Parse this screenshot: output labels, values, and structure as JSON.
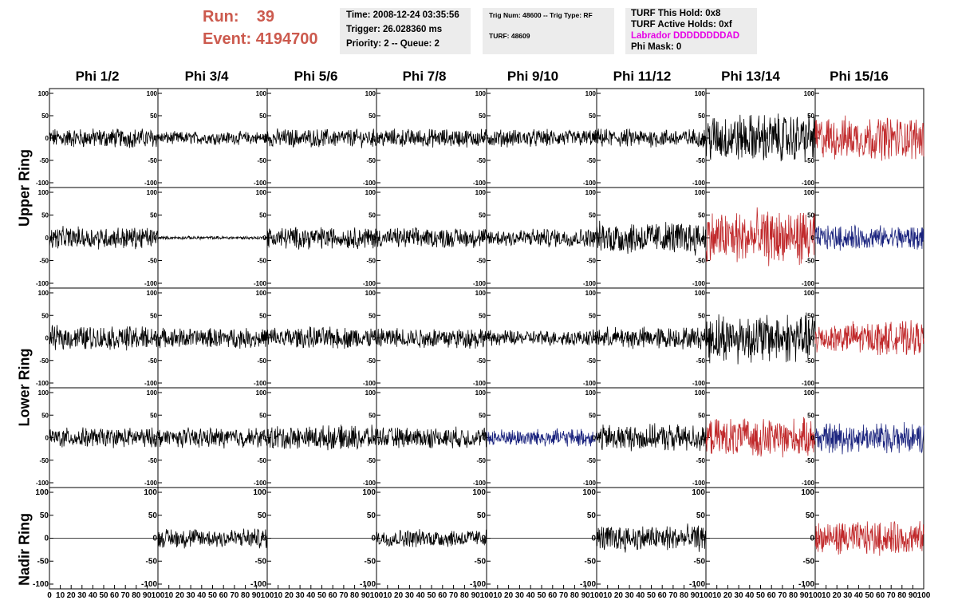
{
  "header": {
    "run_label": "Run:",
    "run_value": "39",
    "event_label": "Event:",
    "event_value": "4194700",
    "time": "Time: 2008-12-24 03:35:56",
    "trigger": "Trigger: 26.028360 ms",
    "priority": "Priority: 2 -- Queue: 2",
    "trig_num": "Trig Num: 48600 -- Trig Type: RF",
    "turf": "TURF: 48609",
    "turf_hold": "TURF This Hold: 0x8",
    "turf_active": "TURF Active Holds: 0xf",
    "labrador": "Labrador DDDDDDDDAD",
    "phi_mask": "Phi Mask: 0"
  },
  "colors": {
    "run_text": "#cc5a4e",
    "labrador_text": "#e600e6",
    "trace_black": "#000000",
    "trace_red": "#c0282a",
    "trace_blue": "#1a237e",
    "info_bg": "#ececec"
  },
  "chart_data": {
    "type": "line",
    "grid_rows": 5,
    "grid_cols": 8,
    "columns": [
      "Phi 1/2",
      "Phi 3/4",
      "Phi 5/6",
      "Phi 7/8",
      "Phi 9/10",
      "Phi 11/12",
      "Phi 13/14",
      "Phi 15/16"
    ],
    "row_groups": [
      {
        "label": "Upper Ring",
        "rows": [
          0,
          1
        ]
      },
      {
        "label": "Lower Ring",
        "rows": [
          2,
          3
        ]
      },
      {
        "label": "Nadir Ring",
        "rows": [
          4
        ]
      }
    ],
    "xlim": [
      0,
      100
    ],
    "ylim": [
      -100,
      100
    ],
    "y_ticks": [
      100,
      50,
      0,
      -50,
      -100
    ],
    "x_tick_labels": [
      "0",
      "10",
      "20",
      "30",
      "40",
      "50",
      "60",
      "70",
      "80",
      "90",
      "100"
    ],
    "panels": [
      [
        {
          "color": "black",
          "amplitude": 18
        },
        {
          "color": "black",
          "amplitude": 12
        },
        {
          "color": "black",
          "amplitude": 17
        },
        {
          "color": "black",
          "amplitude": 17
        },
        {
          "color": "black",
          "amplitude": 16
        },
        {
          "color": "black",
          "amplitude": 17
        },
        {
          "color": "black",
          "amplitude": 45
        },
        {
          "color": "red",
          "amplitude": 40
        }
      ],
      [
        {
          "color": "black",
          "amplitude": 20
        },
        {
          "color": "black",
          "amplitude": 3
        },
        {
          "color": "black",
          "amplitude": 20
        },
        {
          "color": "black",
          "amplitude": 18
        },
        {
          "color": "black",
          "amplitude": 17
        },
        {
          "color": "black",
          "amplitude": 30
        },
        {
          "color": "red",
          "amplitude": 50
        },
        {
          "color": "blue",
          "amplitude": 22
        }
      ],
      [
        {
          "color": "black",
          "amplitude": 22
        },
        {
          "color": "black",
          "amplitude": 18
        },
        {
          "color": "black",
          "amplitude": 20
        },
        {
          "color": "black",
          "amplitude": 19
        },
        {
          "color": "black",
          "amplitude": 14
        },
        {
          "color": "black",
          "amplitude": 20
        },
        {
          "color": "black",
          "amplitude": 45
        },
        {
          "color": "red",
          "amplitude": 30
        }
      ],
      [
        {
          "color": "black",
          "amplitude": 18
        },
        {
          "color": "black",
          "amplitude": 18
        },
        {
          "color": "black",
          "amplitude": 22
        },
        {
          "color": "black",
          "amplitude": 19
        },
        {
          "color": "blue",
          "amplitude": 16
        },
        {
          "color": "black",
          "amplitude": 24
        },
        {
          "color": "red",
          "amplitude": 35
        },
        {
          "color": "blue",
          "amplitude": 28
        }
      ],
      [
        {
          "color": "black",
          "amplitude": 0
        },
        {
          "color": "black",
          "amplitude": 18
        },
        {
          "color": "black",
          "amplitude": 0
        },
        {
          "color": "black",
          "amplitude": 16
        },
        {
          "color": "black",
          "amplitude": 0
        },
        {
          "color": "black",
          "amplitude": 24
        },
        {
          "color": "black",
          "amplitude": 0
        },
        {
          "color": "red",
          "amplitude": 30
        }
      ]
    ]
  }
}
